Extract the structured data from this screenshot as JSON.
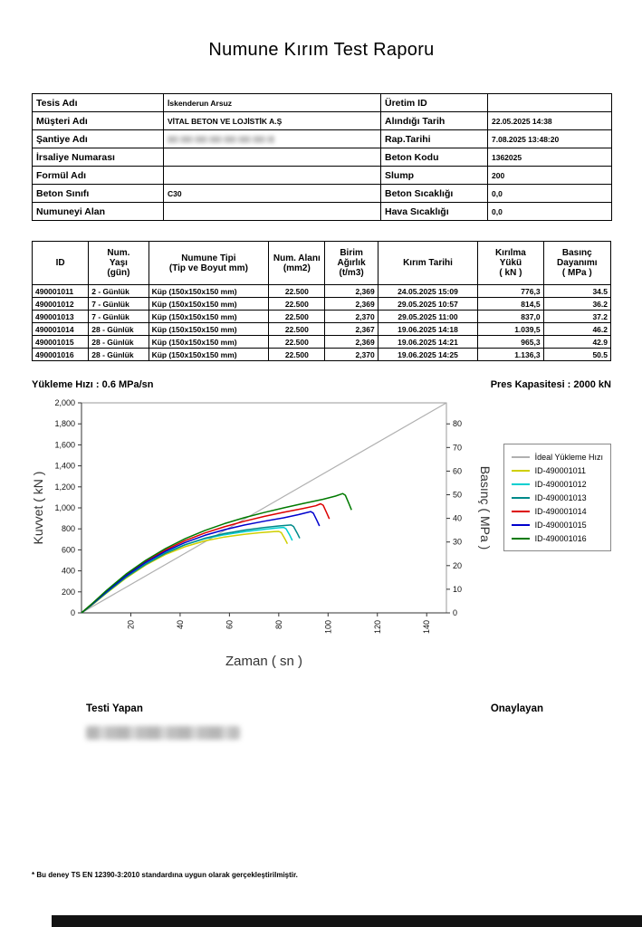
{
  "title": "Numune Kırım Test Raporu",
  "info": {
    "rows": [
      {
        "l_label": "Tesis Adı",
        "l_value": "İskenderun Arsuz",
        "l_redacted": false,
        "r_label": "Üretim ID",
        "r_value": ""
      },
      {
        "l_label": "Müşteri Adı",
        "l_value": "VİTAL BETON VE LOJİSTİK A.Ş",
        "l_redacted": false,
        "r_label": "Alındığı Tarih",
        "r_value": "22.05.2025 14:38"
      },
      {
        "l_label": "Şantiye Adı",
        "l_value": "",
        "l_redacted": true,
        "r_label": "Rap.Tarihi",
        "r_value": "7.08.2025 13:48:20"
      },
      {
        "l_label": "İrsaliye Numarası",
        "l_value": "",
        "l_redacted": false,
        "r_label": "Beton Kodu",
        "r_value": "1362025"
      },
      {
        "l_label": "Formül Adı",
        "l_value": "",
        "l_redacted": false,
        "r_label": "Slump",
        "r_value": "200"
      },
      {
        "l_label": "Beton Sınıfı",
        "l_value": "C30",
        "l_redacted": false,
        "r_label": "Beton Sıcaklığı",
        "r_value": "0,0"
      },
      {
        "l_label": "Numuneyi Alan",
        "l_value": "",
        "l_redacted": false,
        "r_label": "Hava Sıcaklığı",
        "r_value": "0,0"
      }
    ]
  },
  "results": {
    "headers": [
      "ID",
      "Num.\nYaşı\n(gün)",
      "Numune Tipi\n(Tip ve Boyut mm)",
      "Num. Alanı\n(mm2)",
      "Birim\nAğırlık\n(t/m3)",
      "Kırım Tarihi",
      "Kırılma\nYükü\n( kN )",
      "Basınç\nDayanımı\n( MPa )"
    ],
    "rows": [
      [
        "490001011",
        "2 - Günlük",
        "Küp (150x150x150 mm)",
        "22.500",
        "2,369",
        "24.05.2025 15:09",
        "776,3",
        "34.5"
      ],
      [
        "490001012",
        "7 - Günlük",
        "Küp (150x150x150 mm)",
        "22.500",
        "2,369",
        "29.05.2025 10:57",
        "814,5",
        "36.2"
      ],
      [
        "490001013",
        "7 - Günlük",
        "Küp (150x150x150 mm)",
        "22.500",
        "2,370",
        "29.05.2025 11:00",
        "837,0",
        "37.2"
      ],
      [
        "490001014",
        "28 - Günlük",
        "Küp (150x150x150 mm)",
        "22.500",
        "2,367",
        "19.06.2025 14:18",
        "1.039,5",
        "46.2"
      ],
      [
        "490001015",
        "28 - Günlük",
        "Küp (150x150x150 mm)",
        "22.500",
        "2,369",
        "19.06.2025 14:21",
        "965,3",
        "42.9"
      ],
      [
        "490001016",
        "28 - Günlük",
        "Küp (150x150x150 mm)",
        "22.500",
        "2,370",
        "19.06.2025 14:25",
        "1.136,3",
        "50.5"
      ]
    ]
  },
  "chart": {
    "loading_rate_label": "Yükleme Hızı :",
    "loading_rate_value": "0.6 MPa/sn",
    "press_capacity_label": "Pres Kapasitesi :",
    "press_capacity_value": "2000 kN"
  },
  "chart_data": {
    "type": "line",
    "xlabel": "Zaman ( sn )",
    "ylabel_left": "Kuvvet ( kN )",
    "ylabel_right": "Basınç ( MPa )",
    "xlim": [
      0,
      148
    ],
    "ylim_left": [
      0,
      2000
    ],
    "ylim_right": [
      0,
      88.9
    ],
    "x_ticks": [
      20,
      40,
      60,
      80,
      100,
      120,
      140
    ],
    "y_ticks_left": [
      0,
      200,
      400,
      600,
      800,
      1000,
      1200,
      1400,
      1600,
      1800,
      2000
    ],
    "y_ticks_right": [
      0,
      10,
      20,
      30,
      40,
      50,
      60,
      70,
      80
    ],
    "grid": false,
    "legend_position": "right",
    "ideal": {
      "name": "İdeal Yükleme Hızı",
      "color": "#b0b0b0",
      "points": [
        [
          0,
          0
        ],
        [
          148,
          2000
        ]
      ]
    },
    "series": [
      {
        "name": "ID-490001011",
        "color": "#cfcf00",
        "peak_kn": 776.3,
        "points": [
          [
            0,
            0
          ],
          [
            4,
            70
          ],
          [
            10,
            185
          ],
          [
            18,
            330
          ],
          [
            26,
            455
          ],
          [
            34,
            555
          ],
          [
            42,
            630
          ],
          [
            50,
            685
          ],
          [
            58,
            722
          ],
          [
            66,
            748
          ],
          [
            72,
            763
          ],
          [
            78,
            773
          ],
          [
            80,
            776
          ],
          [
            81,
            765
          ],
          [
            82.5,
            705
          ],
          [
            83.5,
            658
          ]
        ]
      },
      {
        "name": "ID-490001012",
        "color": "#00cfd0",
        "peak_kn": 814.5,
        "points": [
          [
            0,
            0
          ],
          [
            4,
            75
          ],
          [
            10,
            195
          ],
          [
            18,
            345
          ],
          [
            26,
            470
          ],
          [
            34,
            572
          ],
          [
            42,
            650
          ],
          [
            50,
            706
          ],
          [
            58,
            744
          ],
          [
            66,
            772
          ],
          [
            74,
            795
          ],
          [
            80,
            810
          ],
          [
            82,
            814
          ],
          [
            83,
            800
          ],
          [
            84.5,
            738
          ],
          [
            85.5,
            690
          ]
        ]
      },
      {
        "name": "ID-490001013",
        "color": "#008a8a",
        "peak_kn": 837.0,
        "points": [
          [
            0,
            0
          ],
          [
            4,
            72
          ],
          [
            10,
            190
          ],
          [
            18,
            338
          ],
          [
            26,
            462
          ],
          [
            34,
            566
          ],
          [
            42,
            648
          ],
          [
            50,
            710
          ],
          [
            58,
            755
          ],
          [
            66,
            788
          ],
          [
            74,
            812
          ],
          [
            80,
            828
          ],
          [
            85,
            837
          ],
          [
            86,
            822
          ],
          [
            87.5,
            758
          ],
          [
            88.5,
            710
          ]
        ]
      },
      {
        "name": "ID-490001014",
        "color": "#dd0000",
        "peak_kn": 1039.5,
        "points": [
          [
            0,
            0
          ],
          [
            4,
            80
          ],
          [
            10,
            205
          ],
          [
            18,
            360
          ],
          [
            26,
            490
          ],
          [
            34,
            598
          ],
          [
            42,
            688
          ],
          [
            50,
            760
          ],
          [
            58,
            820
          ],
          [
            66,
            872
          ],
          [
            74,
            918
          ],
          [
            82,
            958
          ],
          [
            90,
            995
          ],
          [
            95,
            1020
          ],
          [
            97,
            1039
          ],
          [
            98,
            1025
          ],
          [
            99.5,
            950
          ],
          [
            100.5,
            895
          ]
        ]
      },
      {
        "name": "ID-490001015",
        "color": "#0000cd",
        "peak_kn": 965.3,
        "points": [
          [
            0,
            0
          ],
          [
            4,
            78
          ],
          [
            10,
            200
          ],
          [
            18,
            352
          ],
          [
            26,
            480
          ],
          [
            34,
            585
          ],
          [
            42,
            670
          ],
          [
            50,
            738
          ],
          [
            58,
            792
          ],
          [
            66,
            836
          ],
          [
            74,
            872
          ],
          [
            82,
            905
          ],
          [
            88,
            935
          ],
          [
            93,
            965
          ],
          [
            94,
            950
          ],
          [
            95.5,
            880
          ],
          [
            96.5,
            828
          ]
        ]
      },
      {
        "name": "ID-490001016",
        "color": "#007a00",
        "peak_kn": 1136.3,
        "points": [
          [
            0,
            0
          ],
          [
            4,
            82
          ],
          [
            10,
            210
          ],
          [
            18,
            368
          ],
          [
            26,
            500
          ],
          [
            34,
            612
          ],
          [
            42,
            706
          ],
          [
            50,
            784
          ],
          [
            58,
            850
          ],
          [
            66,
            906
          ],
          [
            74,
            955
          ],
          [
            82,
            1000
          ],
          [
            90,
            1042
          ],
          [
            98,
            1082
          ],
          [
            103,
            1112
          ],
          [
            106,
            1136
          ],
          [
            107,
            1120
          ],
          [
            108.5,
            1040
          ],
          [
            109.5,
            980
          ]
        ]
      }
    ]
  },
  "signatures": {
    "tester": "Testi Yapan",
    "approver": "Onaylayan"
  },
  "footer": {
    "note": "* Bu deney TS EN 12390-3:2010 standardına uygun olarak gerçekleştirilmiştir."
  }
}
